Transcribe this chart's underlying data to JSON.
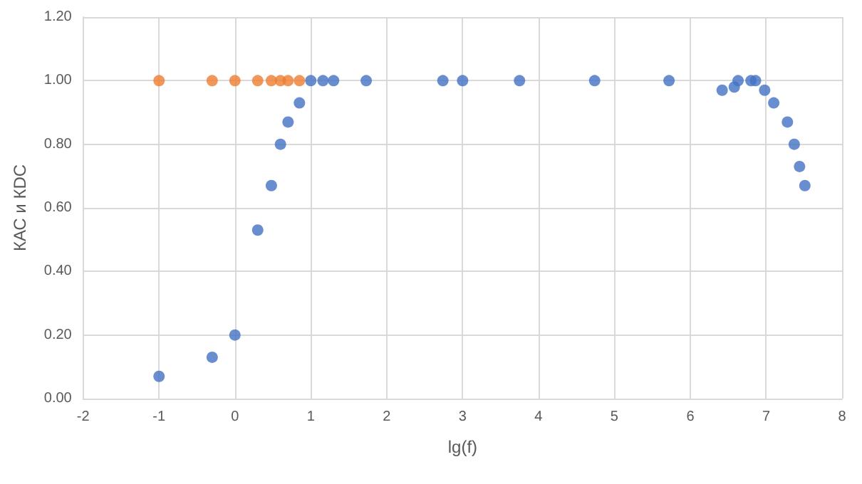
{
  "chart_data": {
    "type": "scatter",
    "xlabel": "lg(f)",
    "ylabel": "КАС и КDC",
    "marker": "circle",
    "grid": true,
    "xlim": [
      -2,
      8
    ],
    "xticks": [
      -2,
      -1,
      0,
      1,
      2,
      3,
      4,
      5,
      6,
      7,
      8
    ],
    "ylim": [
      0,
      1.2
    ],
    "yticks": [
      {
        "value": 0,
        "label": "0.00"
      },
      {
        "value": 0.2,
        "label": "0.20"
      },
      {
        "value": 0.4,
        "label": "0.40"
      },
      {
        "value": 0.6,
        "label": "0.60"
      },
      {
        "value": 0.8,
        "label": "0.80"
      },
      {
        "value": 1,
        "label": "1.00"
      },
      {
        "value": 1.2,
        "label": "1.20"
      }
    ],
    "series": [
      {
        "color": "#4472c4",
        "x": [
          -1,
          -0.3,
          0,
          0.3,
          0.48,
          0.6,
          0.7,
          0.85,
          1,
          1.16,
          1.3,
          1.73,
          2.74,
          3,
          3.75,
          4.74,
          5.72,
          6.42,
          6.58,
          6.63,
          6.8,
          6.86,
          6.98,
          7.1,
          7.28,
          7.37,
          7.44,
          7.51
        ],
        "values": [
          0.07,
          0.13,
          0.2,
          0.53,
          0.67,
          0.8,
          0.87,
          0.93,
          1,
          1,
          1,
          1,
          1,
          1,
          1,
          1,
          1,
          0.97,
          0.98,
          1,
          1,
          1,
          0.97,
          0.93,
          0.87,
          0.8,
          0.73,
          0.67
        ]
      },
      {
        "color": "#ed7d31",
        "x": [
          -1,
          -0.3,
          0,
          0.3,
          0.48,
          0.6,
          0.7,
          0.85
        ],
        "values": [
          1,
          1,
          1,
          1,
          1,
          1,
          1,
          1
        ]
      }
    ]
  }
}
